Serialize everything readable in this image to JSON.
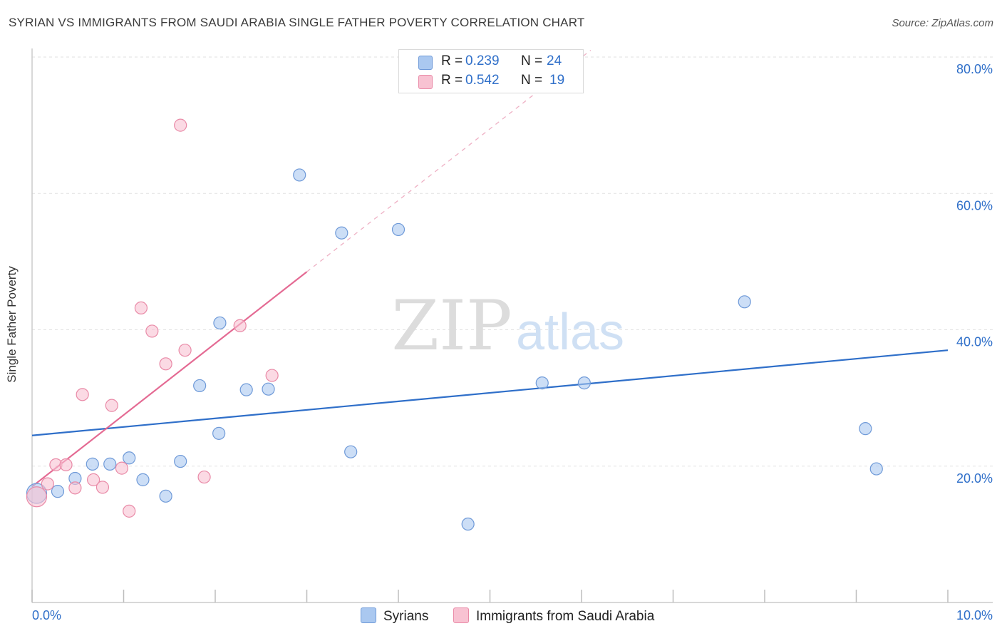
{
  "title": "SYRIAN VS IMMIGRANTS FROM SAUDI ARABIA SINGLE FATHER POVERTY CORRELATION CHART",
  "source": "Source: ZipAtlas.com",
  "watermark": {
    "zip": "ZIP",
    "atlas": "atlas"
  },
  "legend": {
    "rows": [
      {
        "r_label": "R =",
        "r_value": "0.239",
        "n_label": "N =",
        "n_value": "24",
        "color": "#aac8f0",
        "border": "#6f9ad8"
      },
      {
        "r_label": "R =",
        "r_value": "0.542",
        "n_label": "N =",
        "n_value": "19",
        "color": "#f8c2d2",
        "border": "#e98aa7"
      }
    ]
  },
  "bottom_legend": [
    {
      "label": "Syrians",
      "color": "#aac8f0",
      "border": "#6f9ad8"
    },
    {
      "label": "Immigrants from Saudi Arabia",
      "color": "#f8c2d2",
      "border": "#e98aa7"
    }
  ],
  "chart_data": {
    "type": "scatter",
    "xlabel": "",
    "ylabel": "Single Father Poverty",
    "xlim": [
      0,
      10
    ],
    "ylim": [
      0,
      80
    ],
    "x_tick_labels": [
      "0.0%",
      "10.0%"
    ],
    "y_ticks": [
      20,
      40,
      60,
      80
    ],
    "y_tick_labels": [
      "20.0%",
      "40.0%",
      "60.0%",
      "80.0%"
    ],
    "x_minor_ticks": [
      0,
      1,
      2,
      3,
      4,
      5,
      6,
      7,
      8,
      9,
      10
    ],
    "series": [
      {
        "name": "Syrians",
        "color": "#aac8f0",
        "stroke": "#6f9ad8",
        "line_color": "#2f6fc9",
        "trend": {
          "x0": 0,
          "y0": 24.5,
          "x1": 10,
          "y1": 37.0
        },
        "points": [
          {
            "x": 0.05,
            "y": 16.0,
            "big": true
          },
          {
            "x": 0.28,
            "y": 16.3
          },
          {
            "x": 0.47,
            "y": 18.2
          },
          {
            "x": 0.66,
            "y": 20.3
          },
          {
            "x": 0.85,
            "y": 20.3
          },
          {
            "x": 1.06,
            "y": 21.2
          },
          {
            "x": 1.21,
            "y": 18.0
          },
          {
            "x": 1.46,
            "y": 15.6
          },
          {
            "x": 1.62,
            "y": 20.7
          },
          {
            "x": 1.83,
            "y": 31.8
          },
          {
            "x": 2.04,
            "y": 24.8
          },
          {
            "x": 2.05,
            "y": 41.0
          },
          {
            "x": 2.34,
            "y": 31.2
          },
          {
            "x": 2.58,
            "y": 31.3
          },
          {
            "x": 2.92,
            "y": 62.7
          },
          {
            "x": 3.38,
            "y": 54.2
          },
          {
            "x": 3.48,
            "y": 22.1
          },
          {
            "x": 4.0,
            "y": 54.7
          },
          {
            "x": 4.76,
            "y": 11.5
          },
          {
            "x": 5.57,
            "y": 32.2
          },
          {
            "x": 6.03,
            "y": 32.2
          },
          {
            "x": 7.78,
            "y": 44.1
          },
          {
            "x": 9.1,
            "y": 25.5
          },
          {
            "x": 9.22,
            "y": 19.6
          }
        ]
      },
      {
        "name": "Immigrants from Saudi Arabia",
        "color": "#f8c2d2",
        "stroke": "#e98aa7",
        "line_color": "#e46a93",
        "trend": {
          "x0": 0,
          "y0": 17.0,
          "x1": 3.0,
          "y1": 48.5
        },
        "trend_ext": {
          "x0": 3.0,
          "y0": 48.5,
          "x1": 6.1,
          "y1": 81.0
        },
        "points": [
          {
            "x": 0.05,
            "y": 15.5,
            "big": true
          },
          {
            "x": 0.17,
            "y": 17.4
          },
          {
            "x": 0.26,
            "y": 20.2
          },
          {
            "x": 0.37,
            "y": 20.2
          },
          {
            "x": 0.47,
            "y": 16.8
          },
          {
            "x": 0.55,
            "y": 30.5
          },
          {
            "x": 0.67,
            "y": 18.0
          },
          {
            "x": 0.77,
            "y": 16.9
          },
          {
            "x": 0.87,
            "y": 28.9
          },
          {
            "x": 0.98,
            "y": 19.7
          },
          {
            "x": 1.06,
            "y": 13.4
          },
          {
            "x": 1.19,
            "y": 43.2
          },
          {
            "x": 1.31,
            "y": 39.8
          },
          {
            "x": 1.46,
            "y": 35.0
          },
          {
            "x": 1.62,
            "y": 70.0
          },
          {
            "x": 1.67,
            "y": 37.0
          },
          {
            "x": 1.88,
            "y": 18.4
          },
          {
            "x": 2.27,
            "y": 40.6
          },
          {
            "x": 2.62,
            "y": 33.3
          }
        ]
      }
    ]
  }
}
